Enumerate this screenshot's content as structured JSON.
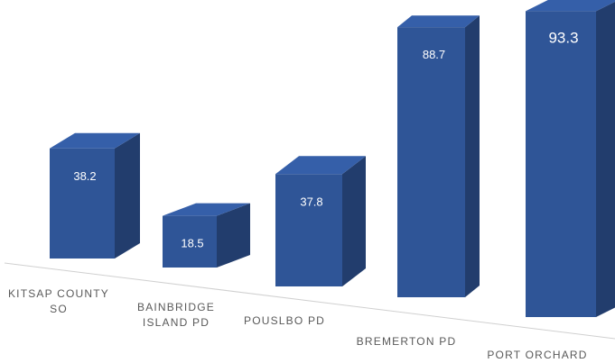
{
  "chart_data": {
    "type": "bar3d",
    "categories": [
      "KITSAP COUNTY SO",
      "BAINBRIDGE ISLAND PD",
      "POUSLBO PD",
      "BREMERTON PD",
      "PORT ORCHARD"
    ],
    "values": [
      38.2,
      18.5,
      37.8,
      88.7,
      93.3
    ],
    "color": "#2f5597"
  }
}
